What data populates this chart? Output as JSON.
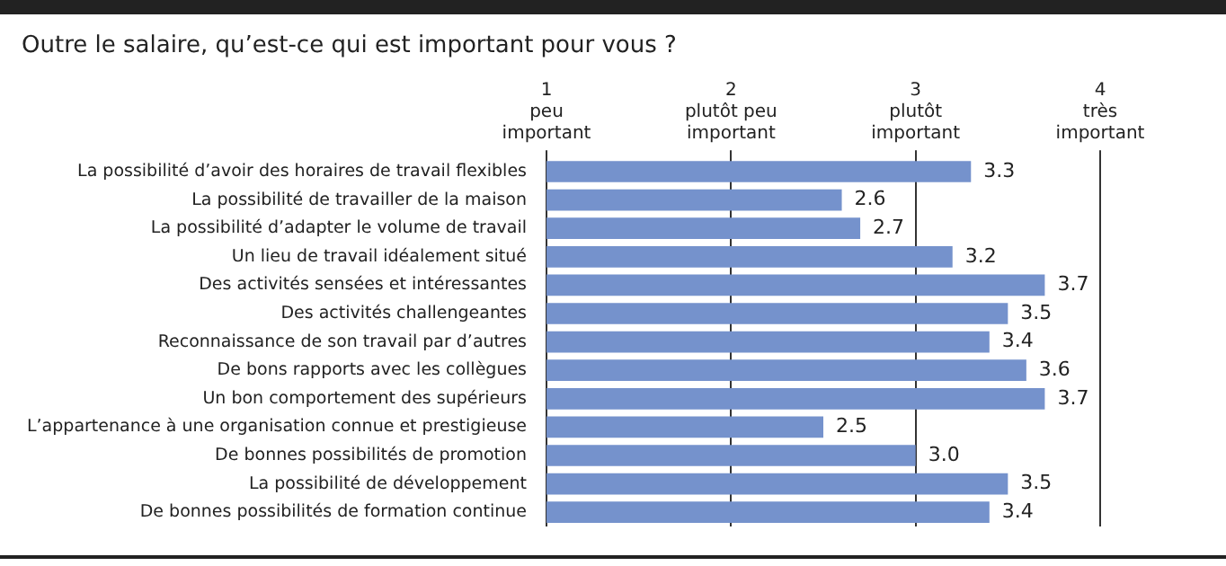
{
  "chart_data": {
    "type": "bar",
    "orientation": "horizontal",
    "title": "Outre le salaire, qu’est-ce qui est important pour vous ?",
    "categories": [
      "La possibilité d’avoir des horaires de travail flexibles",
      "La possibilité de travailler de la maison",
      "La possibilité d’adapter le volume de travail",
      "Un lieu de travail idéalement situé",
      "Des activités sensées et intéressantes",
      "Des activités challengeantes",
      "Reconnaissance de son travail par d’autres",
      "De bons rapports avec les collègues",
      "Un bon comportement des supérieurs",
      "L’appartenance à une organisation connue et prestigieuse",
      "De bonnes possibilités de promotion",
      "La possibilité de développement",
      "De bonnes possibilités de formation continue"
    ],
    "values": [
      3.3,
      2.6,
      2.7,
      3.2,
      3.7,
      3.5,
      3.4,
      3.6,
      3.7,
      2.5,
      3.0,
      3.5,
      3.4
    ],
    "value_labels": [
      "3.3",
      "2.6",
      "2.7",
      "3.2",
      "3.7",
      "3.5",
      "3.4",
      "3.6",
      "3.7",
      "2.5",
      "3.0",
      "3.5",
      "3.4"
    ],
    "color": "#7592cc",
    "xlim": [
      1,
      4
    ],
    "xticks": [
      {
        "value": 1,
        "label": "1\npeu\nimportant"
      },
      {
        "value": 2,
        "label": "2\nplutôt peu\nimportant"
      },
      {
        "value": 3,
        "label": "3\nplutôt\nimportant"
      },
      {
        "value": 4,
        "label": "4\ntrès\nimportant"
      }
    ],
    "grid": "x",
    "legend": false
  }
}
